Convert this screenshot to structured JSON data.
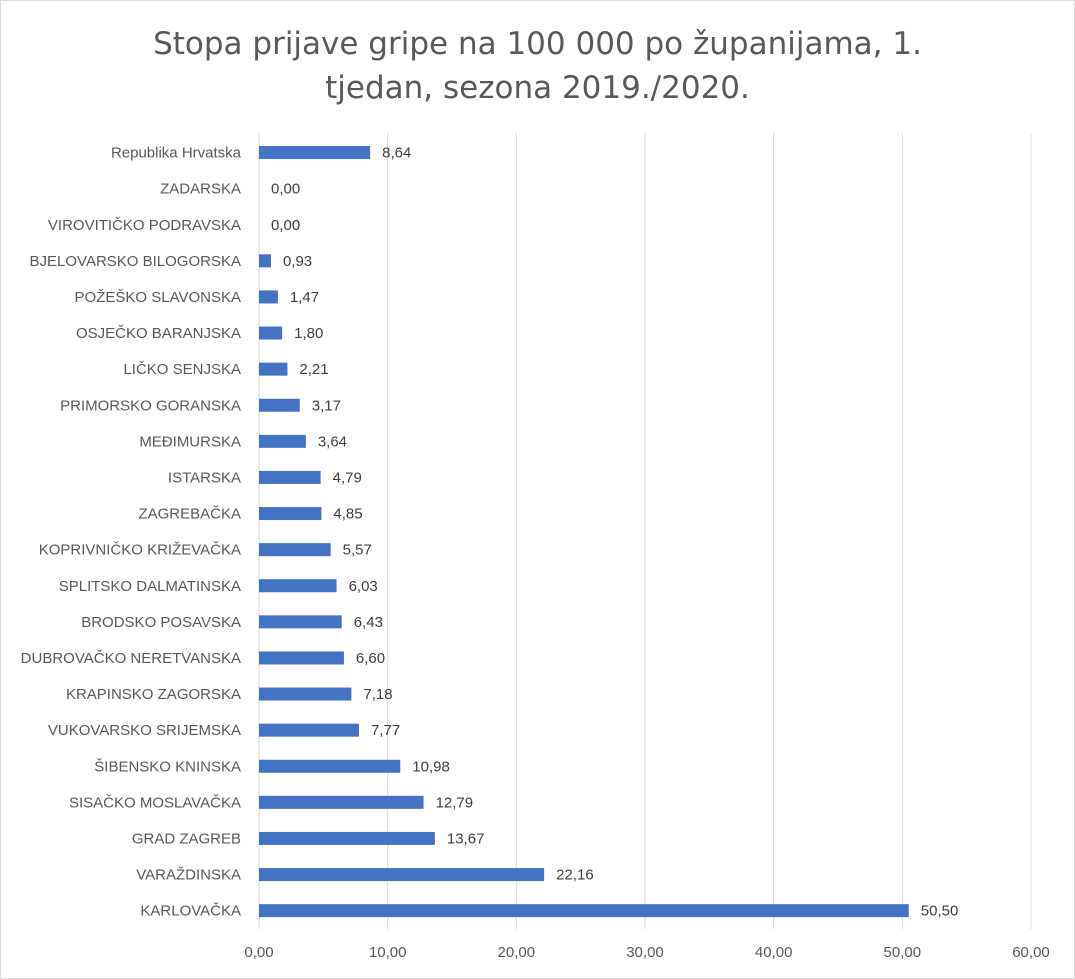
{
  "chart_data": {
    "type": "bar",
    "orientation": "horizontal",
    "title_lines": [
      "Stopa prijave gripe na 100 000 po županijama, 1.",
      "tjedan, sezona 2019./2020."
    ],
    "categories": [
      "Republika Hrvatska",
      "ZADARSKA",
      "VIROVITIČKO PODRAVSKA",
      "BJELOVARSKO BILOGORSKA",
      "POŽEŠKO SLAVONSKA",
      "OSJEČKO BARANJSKA",
      "LIČKO SENJSKA",
      "PRIMORSKO GORANSKA",
      "MEĐIMURSKA",
      "ISTARSKA",
      "ZAGREBAČKA",
      "KOPRIVNIČKO KRIŽEVAČKA",
      "SPLITSKO DALMATINSKA",
      "BRODSKO POSAVSKA",
      "DUBROVAČKO NERETVANSKA",
      "KRAPINSKO ZAGORSKA",
      "VUKOVARSKO SRIJEMSKA",
      "ŠIBENSKO KNINSKA",
      "SISAČKO MOSLAVAČKA",
      "GRAD ZAGREB",
      "VARAŽDINSKA",
      "KARLOVAČKA"
    ],
    "values": [
      8.64,
      0.0,
      0.0,
      0.93,
      1.47,
      1.8,
      2.21,
      3.17,
      3.64,
      4.79,
      4.85,
      5.57,
      6.03,
      6.43,
      6.6,
      7.18,
      7.77,
      10.98,
      12.79,
      13.67,
      22.16,
      50.5
    ],
    "data_labels": [
      "8,64",
      "0,00",
      "0,00",
      "0,93",
      "1,47",
      "1,80",
      "2,21",
      "3,17",
      "3,64",
      "4,79",
      "4,85",
      "5,57",
      "6,03",
      "6,43",
      "6,60",
      "7,18",
      "7,77",
      "10,98",
      "12,79",
      "13,67",
      "22,16",
      "50,50"
    ],
    "xlim": [
      0,
      60
    ],
    "x_ticks": [
      0,
      10,
      20,
      30,
      40,
      50,
      60
    ],
    "x_tick_labels": [
      "0,00",
      "10,00",
      "20,00",
      "30,00",
      "40,00",
      "50,00",
      "60,00"
    ],
    "grid": true,
    "bar_color": "#4472c4",
    "grid_color": "#d9d9d9",
    "xlabel": "",
    "ylabel": ""
  }
}
